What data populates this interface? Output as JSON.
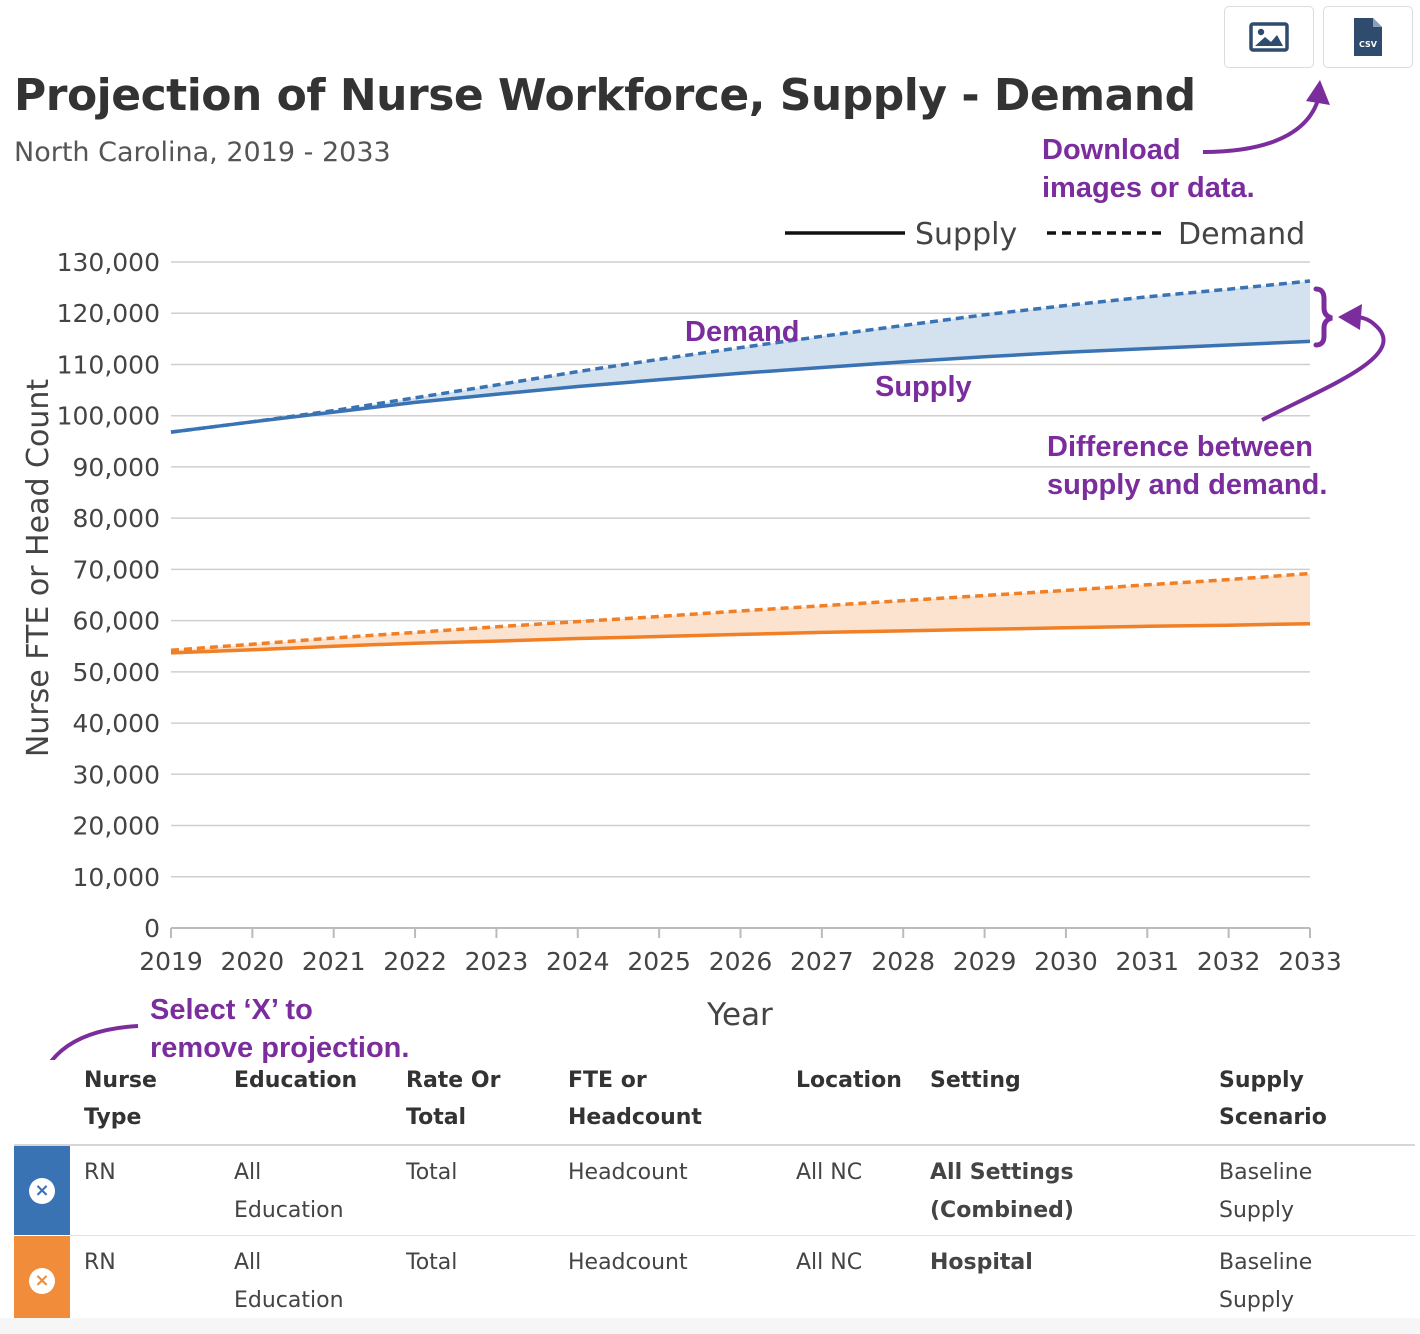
{
  "toolbar": {
    "image_icon": "image-icon",
    "csv_icon": "csv-file-icon",
    "csv_label": "CSV"
  },
  "header": {
    "title": "Projection of Nurse Workforce, Supply - Demand",
    "subtitle": "North Carolina, 2019 - 2033"
  },
  "annotations": {
    "download": [
      "Download",
      "images or data."
    ],
    "difference": [
      "Difference between",
      "supply and demand."
    ],
    "select_x": [
      "Select ‘X’ to",
      "remove projection."
    ],
    "demand_label": "Demand",
    "supply_label": "Supply"
  },
  "chart_data": {
    "type": "line",
    "title": "Projection of Nurse Workforce, Supply - Demand",
    "subtitle": "North Carolina, 2019 - 2033",
    "xlabel": "Year",
    "ylabel": "Nurse FTE or Head Count",
    "x": [
      2019,
      2020,
      2021,
      2022,
      2023,
      2024,
      2025,
      2026,
      2027,
      2028,
      2029,
      2030,
      2031,
      2032,
      2033
    ],
    "ylim": [
      0,
      130000
    ],
    "yticks": [
      0,
      10000,
      20000,
      30000,
      40000,
      50000,
      60000,
      70000,
      80000,
      90000,
      100000,
      110000,
      120000,
      130000
    ],
    "ytick_labels": [
      "0",
      "10,000",
      "20,000",
      "30,000",
      "40,000",
      "50,000",
      "60,000",
      "70,000",
      "80,000",
      "90,000",
      "100,000",
      "110,000",
      "120,000",
      "130,000"
    ],
    "grid": true,
    "legend": {
      "position": "top-right",
      "entries": [
        {
          "label": "Supply",
          "style": "solid"
        },
        {
          "label": "Demand",
          "style": "dashed"
        }
      ]
    },
    "series": [
      {
        "name": "All Settings (Combined) Supply",
        "style": "solid",
        "color": "#3a73b3",
        "values": [
          96800,
          98800,
          100700,
          102600,
          104200,
          105700,
          107000,
          108300,
          109400,
          110500,
          111500,
          112400,
          113100,
          113800,
          114500
        ]
      },
      {
        "name": "All Settings (Combined) Demand",
        "style": "dashed",
        "color": "#3a73b3",
        "values": [
          96800,
          98800,
          101000,
          103500,
          106000,
          108600,
          111000,
          113300,
          115500,
          117600,
          119700,
          121500,
          123200,
          124700,
          126300
        ]
      },
      {
        "name": "Hospital Supply",
        "style": "solid",
        "color": "#f07f26",
        "values": [
          53700,
          54300,
          55000,
          55600,
          56000,
          56500,
          56900,
          57300,
          57700,
          58000,
          58300,
          58600,
          58900,
          59100,
          59400
        ]
      },
      {
        "name": "Hospital Demand",
        "style": "dashed",
        "color": "#f07f26",
        "values": [
          54200,
          55400,
          56600,
          57700,
          58800,
          59800,
          60800,
          61900,
          62900,
          63900,
          64900,
          65900,
          67000,
          68000,
          69200
        ]
      }
    ],
    "fill_colors": {
      "blue": "#d4e1ee",
      "orange": "#fbe3cf"
    }
  },
  "table": {
    "headers": [
      [
        "Nurse",
        "Type"
      ],
      [
        "Education"
      ],
      [
        "Rate Or",
        "Total"
      ],
      [
        "FTE or",
        "Headcount"
      ],
      [
        "Location"
      ],
      [
        "Setting"
      ],
      [
        "Supply",
        "Scenario"
      ]
    ],
    "rows": [
      {
        "color": "#3a73b3",
        "x_color": "#3a73b3",
        "remove": "×",
        "nurse_type": "RN",
        "education": [
          "All",
          "Education"
        ],
        "rate": "Total",
        "fte": "Headcount",
        "location": "All NC",
        "setting": [
          "All Settings",
          "(Combined)"
        ],
        "scenario": [
          "Baseline",
          "Supply"
        ]
      },
      {
        "color": "#f08c3a",
        "x_color": "#f08c3a",
        "remove": "×",
        "nurse_type": "RN",
        "education": [
          "All",
          "Education"
        ],
        "rate": "Total",
        "fte": "Headcount",
        "location": "All NC",
        "setting": [
          "Hospital"
        ],
        "scenario": [
          "Baseline",
          "Supply"
        ]
      }
    ]
  },
  "colors": {
    "annotation": "#7b2d9e",
    "grid": "#cfcfcf"
  }
}
